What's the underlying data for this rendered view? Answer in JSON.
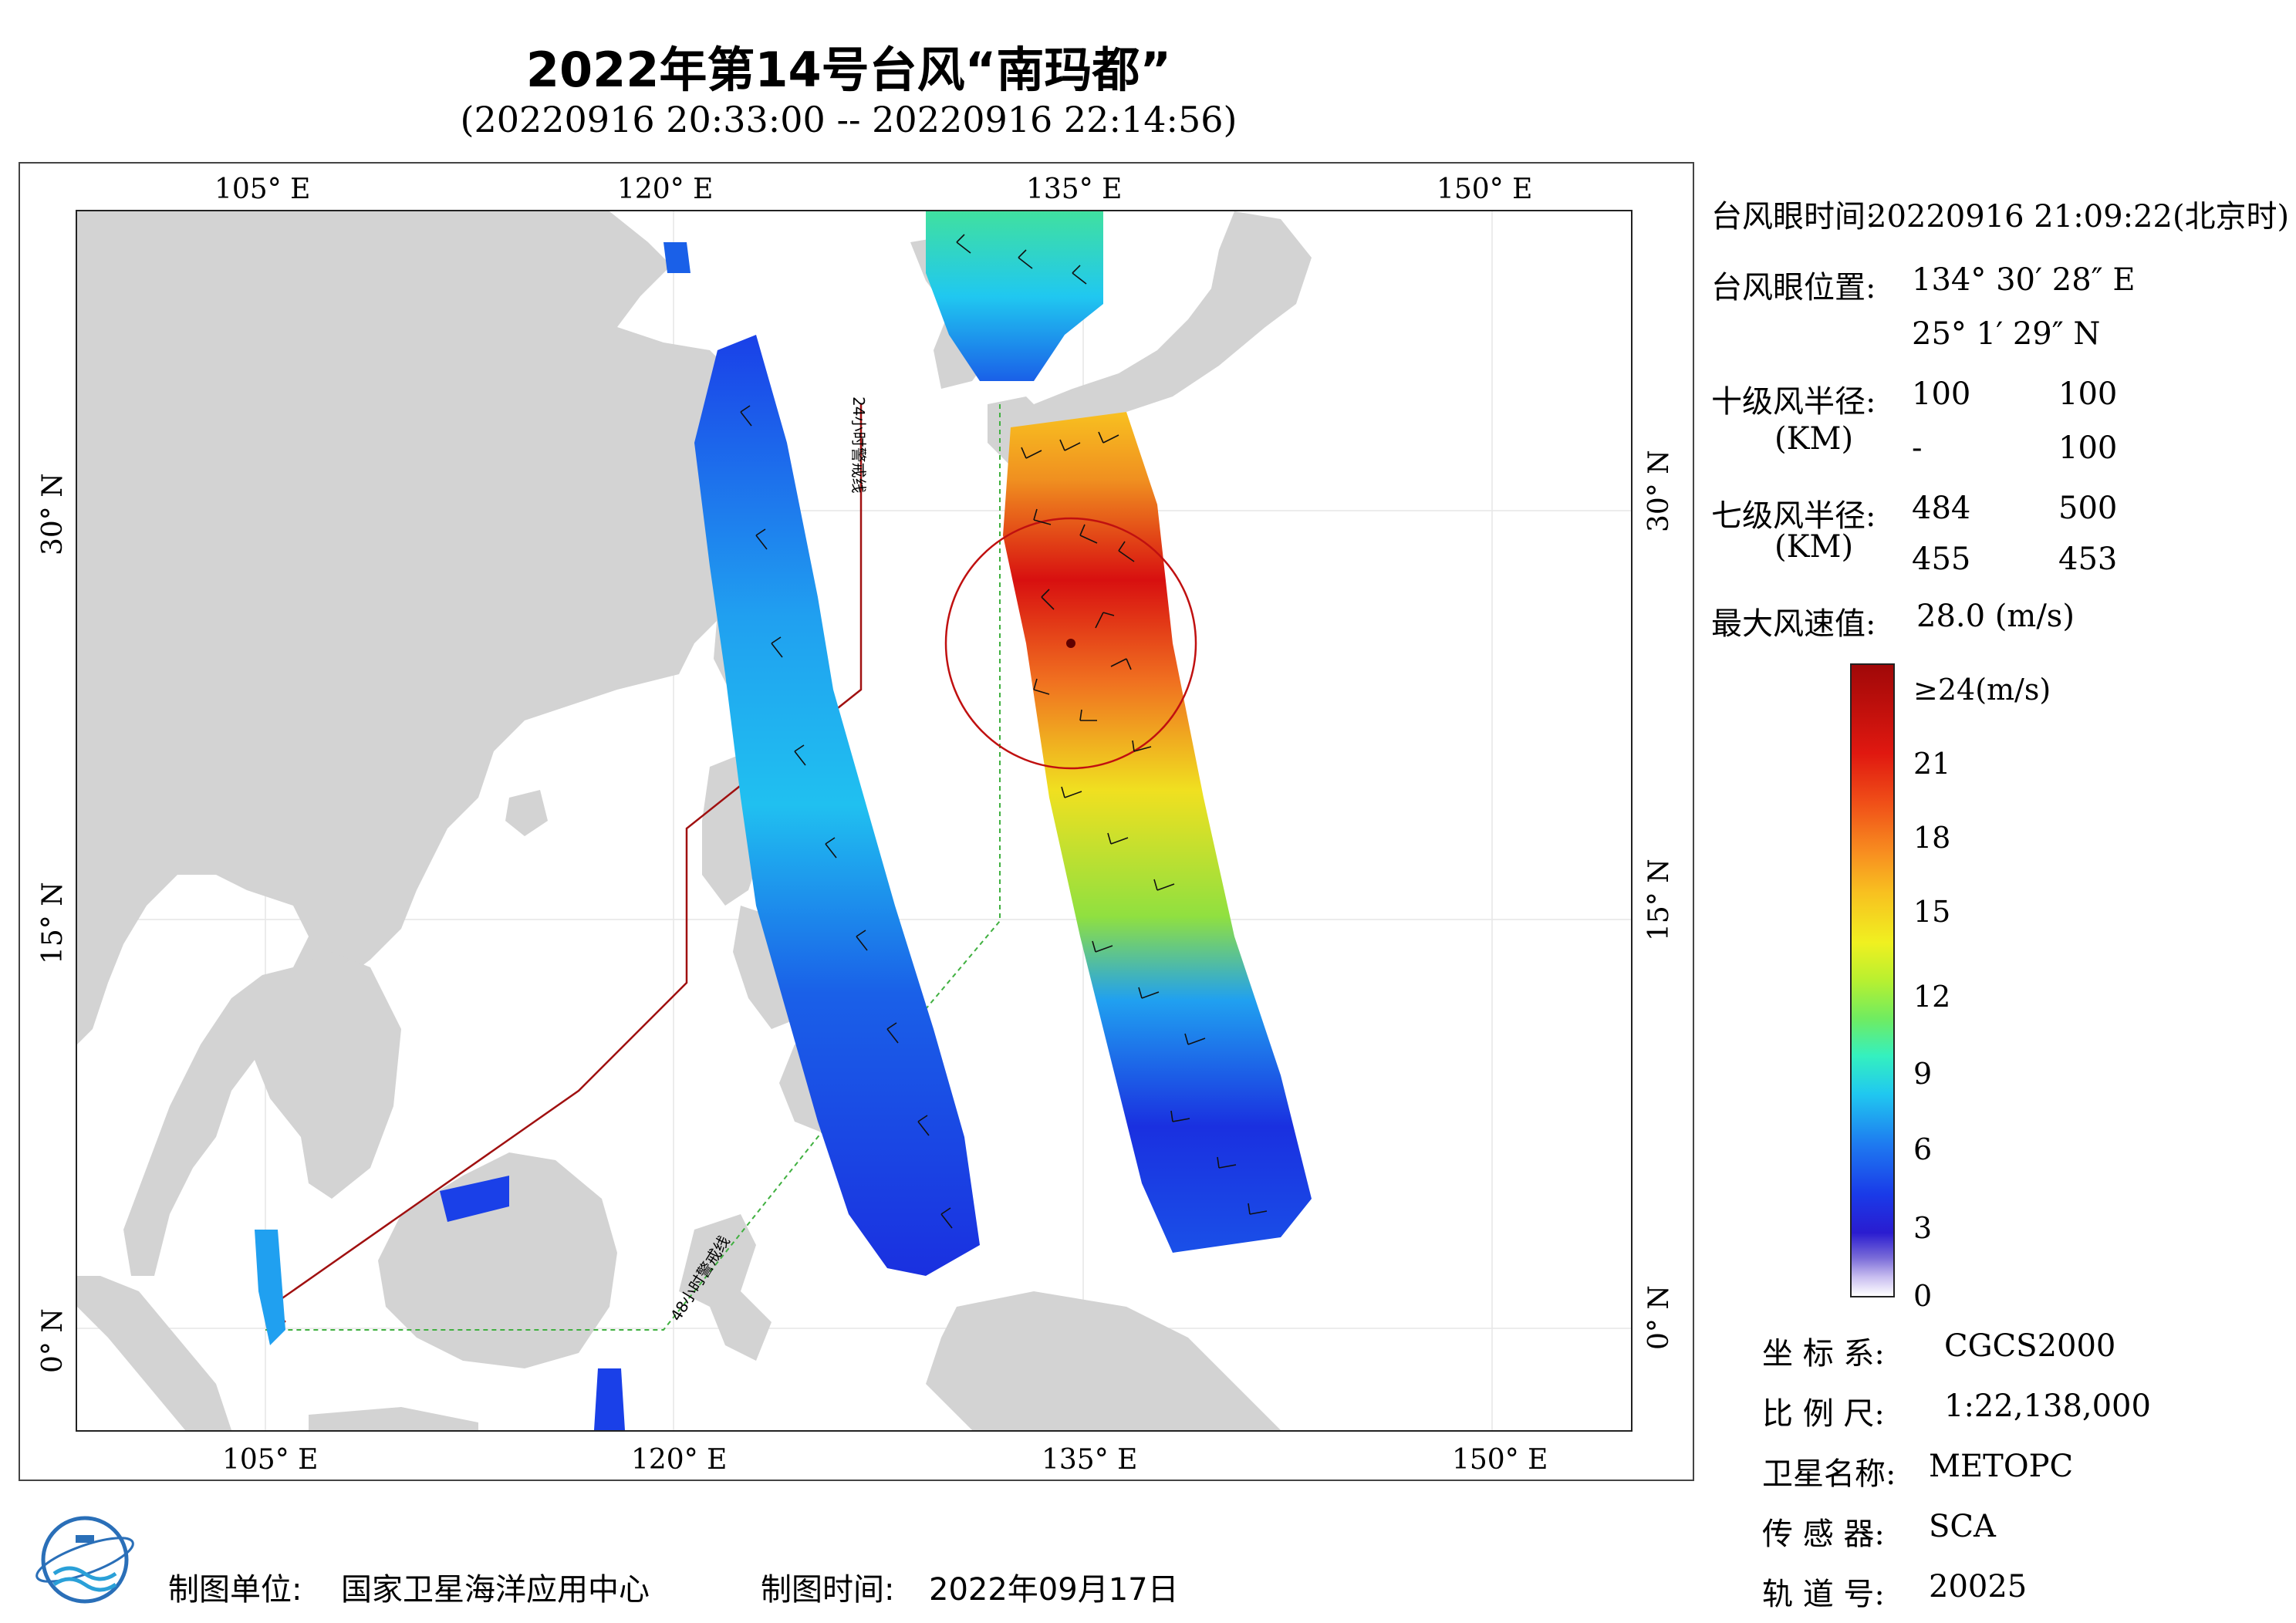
{
  "title": "2022年第14号台风“南玛都”",
  "subtitle": "(20220916 20:33:00 -- 20220916 22:14:56)",
  "map": {
    "lon_labels_top": [
      "105° E",
      "120° E",
      "135° E",
      "150° E"
    ],
    "lon_labels_bottom": [
      "105° E",
      "120° E",
      "135° E",
      "150° E"
    ],
    "lat_labels_left": [
      "30° N",
      "15° N",
      "0° N"
    ],
    "lat_labels_right": [
      "30° N",
      "15° N",
      "0° N"
    ],
    "warning_24h": "24小时警戒线",
    "warning_48h": "48小时警戒线",
    "colors": {
      "land": "#d3d3d3",
      "sea": "#ffffff",
      "warning_24h": "#a01010",
      "warning_48h": "#40b040"
    }
  },
  "info": {
    "eye_time_label": "台风眼时间:",
    "eye_time_value": "20220916 21:09:22(北京时)",
    "eye_pos_label": "台风眼位置:",
    "eye_lon": "134° 30′ 28″ E",
    "eye_lat": "25° 1′ 29″ N",
    "r10_label": "十级风半径:",
    "r10_unit": "(KM)",
    "r10_values": [
      "100",
      "100",
      "-",
      "100"
    ],
    "r7_label": "七级风半径:",
    "r7_unit": "(KM)",
    "r7_values": [
      "484",
      "500",
      "455",
      "453"
    ],
    "max_wind_label": "最大风速值:",
    "max_wind_value": "28.0 (m/s)"
  },
  "colorbar": {
    "labels": [
      "≥24(m/s)",
      "21",
      "18",
      "15",
      "12",
      "9",
      "6",
      "3",
      "0"
    ]
  },
  "meta": {
    "crs_label": "坐 标 系:",
    "crs_value": "CGCS2000",
    "scale_label": "比 例 尺:",
    "scale_value": "1:22,138,000",
    "satellite_label": "卫星名称:",
    "satellite_value": "METOPC",
    "sensor_label": "传 感 器:",
    "sensor_value": "SCA",
    "orbit_label": "轨 道 号:",
    "orbit_value": "20025"
  },
  "footer": {
    "maker_label": "制图单位:",
    "maker_value": "国家卫星海洋应用中心",
    "date_label": "制图时间:",
    "date_value": "2022年09月17日"
  }
}
